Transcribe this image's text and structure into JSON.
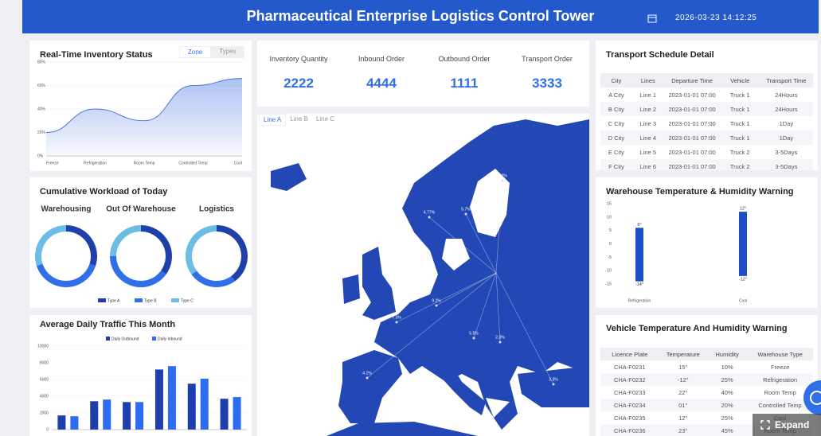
{
  "header": {
    "title": "Pharmaceutical Enterprise Logistics Control Tower",
    "datetime": "2026-03-23 14:12:25"
  },
  "kpis": [
    {
      "label": "Inventory Quantity",
      "value": 2222
    },
    {
      "label": "Inbound Order",
      "value": 4444
    },
    {
      "label": "Outbound Order",
      "value": 1111
    },
    {
      "label": "Transport Order",
      "value": 3333
    }
  ],
  "chart_data": [
    {
      "type": "line",
      "title": "Real-Time Inventory Status",
      "tabs": [
        "Zone",
        "Types"
      ],
      "categories": [
        "Freeze",
        "Refrigeration",
        "Room Temp",
        "Controlled Temp",
        "Cool"
      ],
      "values": [
        20,
        40,
        30,
        60,
        66
      ],
      "color": "#4a78e0",
      "ylim": [
        0,
        80
      ],
      "yticks": [
        {
          "value": 0,
          "label": "0%"
        },
        {
          "value": 20,
          "label": "20%"
        },
        {
          "value": 40,
          "label": "40%"
        },
        {
          "value": 60,
          "label": "60%"
        },
        {
          "value": 80,
          "label": "80%"
        }
      ],
      "grid": true
    },
    {
      "type": "donut",
      "title": "Cumulative Workload of Today",
      "categories": [
        "Warehousing",
        "Out Of Warehouse",
        "Logistics"
      ],
      "series": [
        {
          "name": "Type A",
          "color": "#1e40a8",
          "values": [
            30,
            35,
            40
          ]
        },
        {
          "name": "Type B",
          "color": "#2f6fe8",
          "values": [
            40,
            40,
            25
          ]
        },
        {
          "name": "Type C",
          "color": "#6cbde6",
          "values": [
            30,
            25,
            35
          ]
        }
      ]
    },
    {
      "type": "bar",
      "title": "Average Daily Traffic This Month",
      "categories": [
        null,
        null,
        null,
        null,
        null,
        null
      ],
      "series": [
        {
          "name": "Daily Outbound",
          "color": "#1d3fae",
          "values": [
            1700,
            3400,
            3300,
            7200,
            5500,
            3700
          ]
        },
        {
          "name": "Daily Inbound",
          "color": "#2c6cf0",
          "values": [
            1600,
            3600,
            3300,
            7600,
            6100,
            3900
          ]
        }
      ],
      "ylim": [
        0,
        10000
      ],
      "yticks": [
        0,
        2000,
        4000,
        6000,
        8000,
        10000
      ],
      "grid": true
    },
    {
      "type": "range-bar",
      "title": "Warehouse Temperature & Humidity Warning",
      "categories": [
        "Refrigeration",
        "Cool"
      ],
      "color": "#1f4fc4",
      "series": [
        {
          "values": [
            6,
            12
          ],
          "value_labels": [
            "6°",
            "12°"
          ]
        },
        {
          "values": [
            -14,
            -12
          ],
          "value_labels": [
            "-14°",
            "-12°"
          ]
        }
      ],
      "ylim": [
        -15,
        15
      ],
      "yticks": [
        -15,
        -10,
        -5,
        0,
        5,
        10,
        15
      ],
      "grid": false
    }
  ],
  "map": {
    "tabs": [
      "Line A",
      "Line B",
      "Line C"
    ],
    "labels": [
      "4.77%",
      "5.7%",
      "6.2%",
      "7.3%",
      "4.1%",
      "3.3%",
      "2.3%",
      "9.2%",
      "5.5%"
    ]
  },
  "transport_table": {
    "title": "Transport Schedule Detail",
    "columns": [
      "City",
      "Lines",
      "Departure Time",
      "Vehicle",
      "Transport Time"
    ],
    "rows": [
      [
        "A City",
        "Line 1",
        "2023-01-01 07:00",
        "Truck 1",
        "24Hours"
      ],
      [
        "B City",
        "Line 2",
        "2023-01-01 07:00",
        "Truck 1",
        "24Hours"
      ],
      [
        "C City",
        "Line 3",
        "2023-01-01 07:00",
        "Truck 1",
        "1Day"
      ],
      [
        "D City",
        "Line 4",
        "2023-01-01 07:00",
        "Truck 1",
        "1Day"
      ],
      [
        "E City",
        "Line 5",
        "2023-01-01 07:00",
        "Truck 2",
        "3-5Days"
      ],
      [
        "F City",
        "Line 6",
        "2023-01-01 07:00",
        "Truck 2",
        "3-5Days"
      ]
    ]
  },
  "vehicle_table": {
    "title": "Vehicle Temperature And Humidity Warning",
    "columns": [
      "Licence Plate",
      "Temperature",
      "Humidity",
      "Warehouse Type"
    ],
    "rows": [
      [
        "CHA-F0231",
        "15°",
        "10%",
        "Freeze"
      ],
      [
        "CHA-F0232",
        "-12°",
        "25%",
        "Refrigeration"
      ],
      [
        "CHA-F0233",
        "22°",
        "40%",
        "Room Temp"
      ],
      [
        "CHA-F0234",
        "01°",
        "20%",
        "Controlled Temp"
      ],
      [
        "CHA-F0235",
        "12°",
        "25%",
        "Cool"
      ],
      [
        "CHA-F0236",
        "23°",
        "45%",
        "Room Temp"
      ]
    ]
  },
  "expand": "Expand"
}
